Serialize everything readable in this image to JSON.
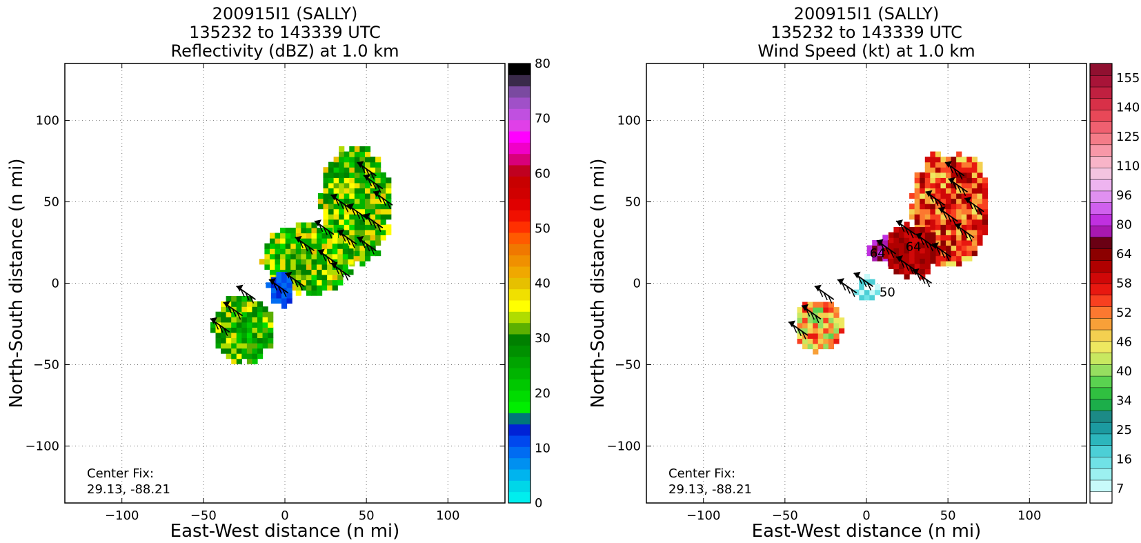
{
  "chart_data": [
    {
      "type": "heatmap",
      "panel": "reflectivity",
      "title_lines": [
        "200915I1 (SALLY)",
        "135232 to 143339 UTC",
        "Reflectivity (dBZ) at 1.0 km"
      ],
      "xlabel": "East-West distance (n mi)",
      "ylabel": "North-South distance (n mi)",
      "xlim": [
        -135,
        135
      ],
      "ylim": [
        -135,
        135
      ],
      "xticks": [
        -100,
        -50,
        0,
        50,
        100
      ],
      "yticks": [
        -100,
        -50,
        0,
        50,
        100
      ],
      "xtick_labels": [
        "−100",
        "−50",
        "0",
        "50",
        "100"
      ],
      "ytick_labels": [
        "−100",
        "−50",
        "0",
        "50",
        "100"
      ],
      "grid": "dotted",
      "center_fix_lines": [
        "Center Fix:",
        "29.13, -88.21"
      ],
      "colorbar": {
        "min": 0,
        "max": 80,
        "ticks": [
          0,
          10,
          20,
          30,
          40,
          50,
          60,
          70,
          80
        ],
        "tick_labels": [
          "0",
          "10",
          "20",
          "30",
          "40",
          "50",
          "60",
          "70",
          "80"
        ],
        "colors": [
          "#00eeee",
          "#00d6e8",
          "#00b4ee",
          "#0090f0",
          "#006cf2",
          "#0048ee",
          "#0022d6",
          "#00777a",
          "#00ee00",
          "#00dc00",
          "#00c800",
          "#00b400",
          "#00a400",
          "#009000",
          "#008000",
          "#5cb000",
          "#b0dc00",
          "#ffff00",
          "#f0e000",
          "#e6c000",
          "#f0a800",
          "#f09000",
          "#f07800",
          "#ff5a00",
          "#ff3000",
          "#f01000",
          "#e00000",
          "#d00000",
          "#c80000",
          "#c00020",
          "#d8007a",
          "#f000c8",
          "#ff00ff",
          "#e040e8",
          "#c050e0",
          "#a050c8",
          "#7a4aa0",
          "#3a2a4a",
          "#000000"
        ]
      },
      "regions": [
        {
          "name": "ne-band",
          "x": [
            22,
            65
          ],
          "y": [
            12,
            84
          ],
          "range_dbz": [
            20,
            40
          ],
          "dominant": "green-yellow"
        },
        {
          "name": "central-band",
          "x": [
            -14,
            42
          ],
          "y": [
            -6,
            36
          ],
          "range_dbz": [
            20,
            40
          ],
          "dominant": "green-yellow"
        },
        {
          "name": "eye-wall-blue",
          "x": [
            -10,
            6
          ],
          "y": [
            -14,
            6
          ],
          "range_dbz": [
            8,
            14
          ]
        },
        {
          "name": "sw-band",
          "x": [
            -44,
            -6
          ],
          "y": [
            -48,
            -8
          ],
          "range_dbz": [
            20,
            38
          ]
        }
      ],
      "wind_barbs": [
        {
          "x": 56,
          "y": 66
        },
        {
          "x": 60,
          "y": 58
        },
        {
          "x": 66,
          "y": 48
        },
        {
          "x": 40,
          "y": 46
        },
        {
          "x": 50,
          "y": 40
        },
        {
          "x": 60,
          "y": 34
        },
        {
          "x": 30,
          "y": 30
        },
        {
          "x": 44,
          "y": 24
        },
        {
          "x": 56,
          "y": 20
        },
        {
          "x": 18,
          "y": 20
        },
        {
          "x": 32,
          "y": 12
        },
        {
          "x": 40,
          "y": 4
        },
        {
          "x": 2,
          "y": -6
        },
        {
          "x": 12,
          "y": -2
        },
        {
          "x": -18,
          "y": -10
        },
        {
          "x": -26,
          "y": -20
        },
        {
          "x": -34,
          "y": -30
        }
      ]
    },
    {
      "type": "heatmap",
      "panel": "wind-speed",
      "title_lines": [
        "200915I1 (SALLY)",
        "135232 to 143339 UTC",
        "Wind Speed (kt) at 1.0 km"
      ],
      "xlabel": "East-West distance (n mi)",
      "ylabel": "North-South distance (n mi)",
      "xlim": [
        -135,
        135
      ],
      "ylim": [
        -135,
        135
      ],
      "xticks": [
        -100,
        -50,
        0,
        50,
        100
      ],
      "yticks": [
        -100,
        -50,
        0,
        50,
        100
      ],
      "xtick_labels": [
        "−100",
        "−50",
        "0",
        "50",
        "100"
      ],
      "ytick_labels": [
        "−100",
        "−50",
        "0",
        "50",
        "100"
      ],
      "grid": "dotted",
      "center_fix_lines": [
        "Center Fix:",
        "29.13, -88.21"
      ],
      "contour_labels": [
        "64",
        "64",
        "50"
      ],
      "colorbar": {
        "tick_labels": [
          "7",
          "16",
          "25",
          "34",
          "40",
          "46",
          "52",
          "58",
          "64",
          "80",
          "96",
          "110",
          "125",
          "140",
          "155"
        ],
        "colors": [
          "#ffffff",
          "#c8fafa",
          "#9cf0f0",
          "#70e2e6",
          "#4ccfd6",
          "#2cb6bc",
          "#1c9aa0",
          "#1c8a86",
          "#1cae4a",
          "#30c040",
          "#5ad250",
          "#96de60",
          "#c8e860",
          "#eee860",
          "#f4d050",
          "#f8a038",
          "#fc7830",
          "#f84020",
          "#e81810",
          "#d00808",
          "#b00000",
          "#8c0000",
          "#6a0014",
          "#a818b0",
          "#c030e0",
          "#d060ee",
          "#e090f0",
          "#eeb4f0",
          "#f4c4e0",
          "#f8b4c8",
          "#f898a8",
          "#f47c88",
          "#f06070",
          "#e84858",
          "#d83048",
          "#c02040",
          "#a81438",
          "#901030"
        ]
      },
      "regions": [
        {
          "name": "ne-band",
          "x": [
            28,
            76
          ],
          "y": [
            12,
            80
          ],
          "speed_kt": [
            46,
            64
          ]
        },
        {
          "name": "inner-core-purple",
          "x": [
            2,
            28
          ],
          "y": [
            12,
            28
          ],
          "speed_kt": [
            64,
            80
          ]
        },
        {
          "name": "eyewall-dark-red",
          "x": [
            12,
            44
          ],
          "y": [
            4,
            36
          ],
          "speed_kt": [
            58,
            64
          ]
        },
        {
          "name": "eye-calm",
          "x": [
            -6,
            8
          ],
          "y": [
            -12,
            4
          ],
          "speed_kt": [
            7,
            25
          ]
        },
        {
          "name": "sw-band",
          "x": [
            -44,
            -14
          ],
          "y": [
            -42,
            -10
          ],
          "speed_kt": [
            40,
            58
          ]
        }
      ],
      "wind_barbs": [
        {
          "x": 60,
          "y": 66
        },
        {
          "x": 62,
          "y": 56
        },
        {
          "x": 72,
          "y": 44
        },
        {
          "x": 48,
          "y": 48
        },
        {
          "x": 56,
          "y": 38
        },
        {
          "x": 66,
          "y": 28
        },
        {
          "x": 30,
          "y": 30
        },
        {
          "x": 42,
          "y": 22
        },
        {
          "x": 52,
          "y": 16
        },
        {
          "x": 18,
          "y": 18
        },
        {
          "x": 30,
          "y": 8
        },
        {
          "x": 40,
          "y": 0
        },
        {
          "x": -6,
          "y": -6
        },
        {
          "x": 4,
          "y": -2
        },
        {
          "x": -20,
          "y": -10
        },
        {
          "x": -28,
          "y": -22
        },
        {
          "x": -36,
          "y": -32
        }
      ]
    }
  ]
}
